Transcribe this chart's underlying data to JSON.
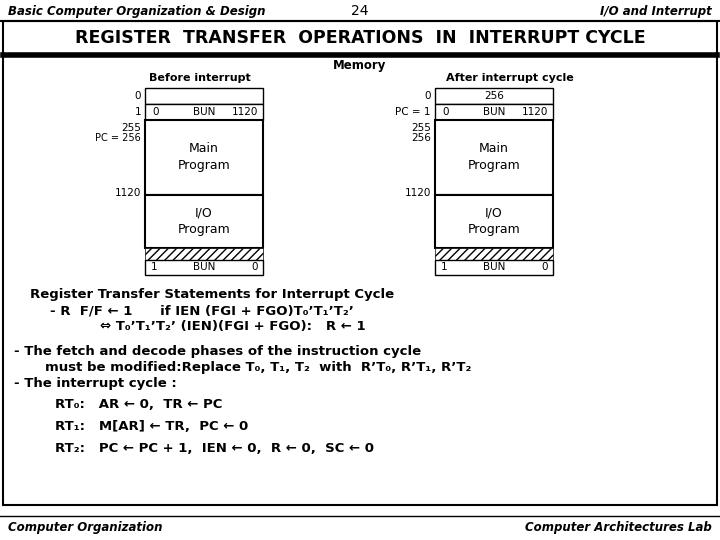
{
  "title_header": "Basic Computer Organization & Design",
  "page_num": "24",
  "section": "I/O and Interrupt",
  "main_title": "REGISTER  TRANSFER  OPERATIONS  IN  INTERRUPT CYCLE",
  "memory_label": "Memory",
  "before_label": "Before interrupt",
  "after_label": "After interrupt cycle",
  "footer_left": "Computer Organization",
  "footer_right": "Computer Architectures Lab",
  "bg_color": "#ffffff"
}
